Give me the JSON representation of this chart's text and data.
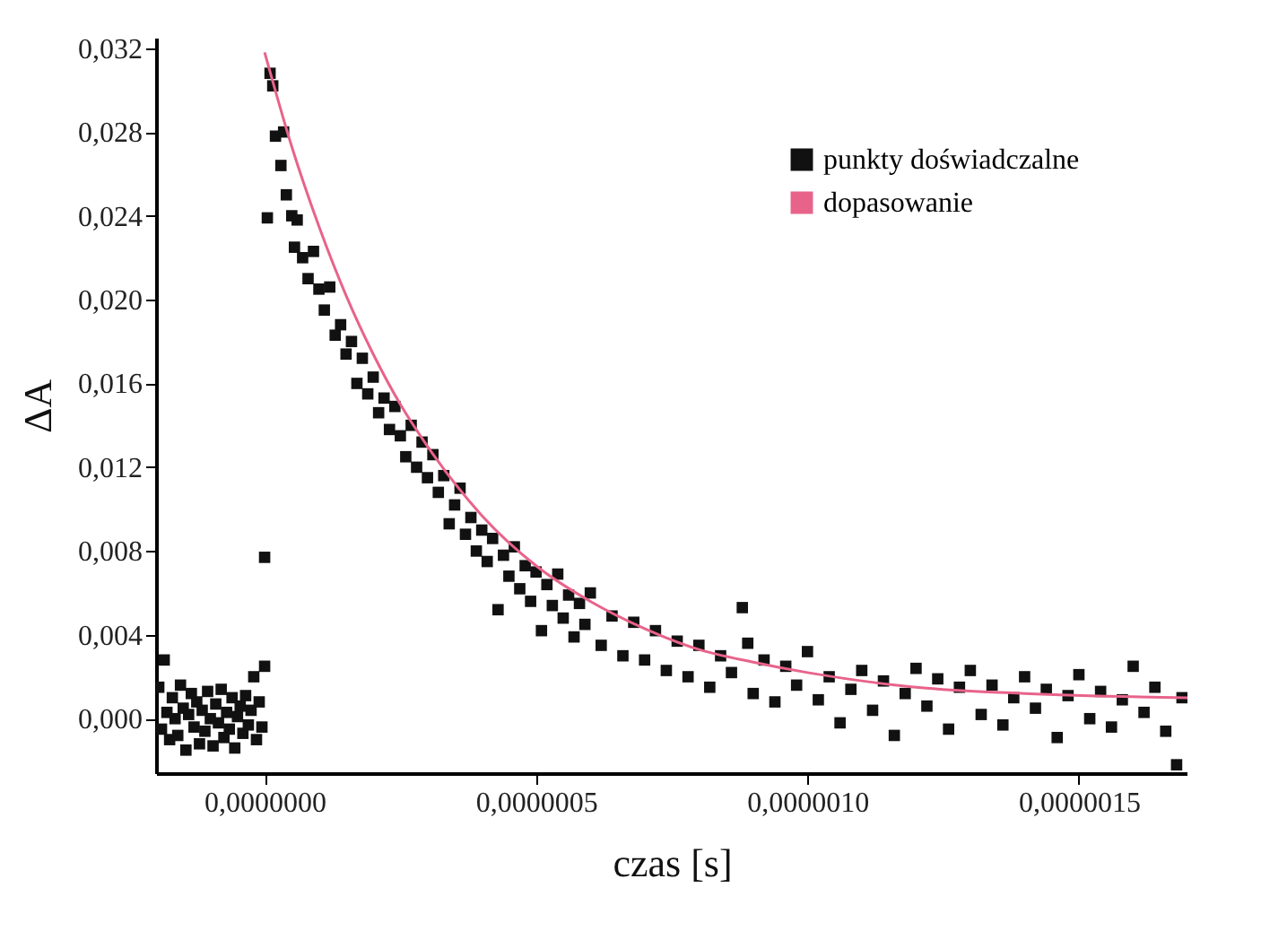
{
  "chart_data": {
    "type": "scatter",
    "xlabel": "czas [s]",
    "ylabel": "ΔA",
    "xlim": [
      -2e-07,
      1.7e-06
    ],
    "ylim": [
      -0.0026,
      0.0325
    ],
    "xticks": [
      {
        "value": 0,
        "label": "0,0000000"
      },
      {
        "value": 5e-07,
        "label": "0,0000005"
      },
      {
        "value": 1e-06,
        "label": "0,0000010"
      },
      {
        "value": 1.5e-06,
        "label": "0,0000015"
      }
    ],
    "yticks": [
      {
        "value": 0,
        "label": "0,000"
      },
      {
        "value": 0.004,
        "label": "0,004"
      },
      {
        "value": 0.008,
        "label": "0,008"
      },
      {
        "value": 0.012,
        "label": "0,012"
      },
      {
        "value": 0.016,
        "label": "0,016"
      },
      {
        "value": 0.02,
        "label": "0,020"
      },
      {
        "value": 0.024,
        "label": "0,024"
      },
      {
        "value": 0.028,
        "label": "0,028"
      },
      {
        "value": 0.032,
        "label": "0,032"
      }
    ],
    "grid": false,
    "legend": "top right",
    "series": [
      {
        "name": "punkty doświadczalne",
        "marker": "square",
        "color": "#111111",
        "x": [
          -1.95e-07,
          -1.9e-07,
          -1.85e-07,
          -1.8e-07,
          -1.75e-07,
          -1.7e-07,
          -1.65e-07,
          -1.6e-07,
          -1.55e-07,
          -1.5e-07,
          -1.45e-07,
          -1.4e-07,
          -1.35e-07,
          -1.3e-07,
          -1.25e-07,
          -1.2e-07,
          -1.15e-07,
          -1.1e-07,
          -1.05e-07,
          -1e-07,
          -9.5e-08,
          -9e-08,
          -8.5e-08,
          -8e-08,
          -7.5e-08,
          -7e-08,
          -6.5e-08,
          -6e-08,
          -5.5e-08,
          -5e-08,
          -4.5e-08,
          -4e-08,
          -3.5e-08,
          -3e-08,
          -2.5e-08,
          -2e-08,
          -1.5e-08,
          -1e-08,
          -5e-09,
          0,
          0,
          5e-09,
          1e-08,
          1.5e-08,
          2e-08,
          3e-08,
          3.5e-08,
          4e-08,
          5e-08,
          5.5e-08,
          6e-08,
          7e-08,
          8e-08,
          9e-08,
          1e-07,
          1.1e-07,
          1.2e-07,
          1.3e-07,
          1.4e-07,
          1.5e-07,
          1.6e-07,
          1.7e-07,
          1.8e-07,
          1.9e-07,
          2e-07,
          2.1e-07,
          2.2e-07,
          2.3e-07,
          2.4e-07,
          2.5e-07,
          2.6e-07,
          2.7e-07,
          2.8e-07,
          2.9e-07,
          3e-07,
          3.1e-07,
          3.2e-07,
          3.3e-07,
          3.4e-07,
          3.5e-07,
          3.6e-07,
          3.7e-07,
          3.8e-07,
          3.9e-07,
          4e-07,
          4.1e-07,
          4.2e-07,
          4.3e-07,
          4.4e-07,
          4.5e-07,
          4.6e-07,
          4.7e-07,
          4.8e-07,
          4.9e-07,
          5e-07,
          5.1e-07,
          5.2e-07,
          5.3e-07,
          5.4e-07,
          5.5e-07,
          5.6e-07,
          5.7e-07,
          5.8e-07,
          5.9e-07,
          6e-07,
          6.2e-07,
          6.4e-07,
          6.6e-07,
          6.8e-07,
          7e-07,
          7.2e-07,
          7.4e-07,
          7.6e-07,
          7.8e-07,
          8e-07,
          8.2e-07,
          8.4e-07,
          8.6e-07,
          8.8e-07,
          8.9e-07,
          9e-07,
          9.2e-07,
          9.4e-07,
          9.6e-07,
          9.8e-07,
          1e-06,
          1.02e-06,
          1.04e-06,
          1.06e-06,
          1.08e-06,
          1.1e-06,
          1.12e-06,
          1.14e-06,
          1.16e-06,
          1.18e-06,
          1.2e-06,
          1.22e-06,
          1.24e-06,
          1.26e-06,
          1.28e-06,
          1.3e-06,
          1.32e-06,
          1.34e-06,
          1.36e-06,
          1.38e-06,
          1.4e-06,
          1.42e-06,
          1.44e-06,
          1.46e-06,
          1.48e-06,
          1.5e-06,
          1.52e-06,
          1.54e-06,
          1.56e-06,
          1.58e-06,
          1.6e-06,
          1.62e-06,
          1.64e-06,
          1.66e-06,
          1.68e-06,
          1.69e-06
        ],
        "values": [
          0.0015,
          -0.0005,
          0.0028,
          0.0003,
          -0.001,
          0.001,
          0.0,
          -0.0008,
          0.0016,
          0.0005,
          -0.0015,
          0.0002,
          0.0012,
          -0.0004,
          0.0008,
          -0.0012,
          0.0004,
          -0.0006,
          0.0013,
          0.0,
          -0.0013,
          0.0007,
          -0.0002,
          0.0014,
          -0.0009,
          0.0003,
          -0.0005,
          0.001,
          -0.0014,
          0.0001,
          0.0006,
          -0.0007,
          0.0011,
          -0.0003,
          0.0004,
          0.002,
          -0.001,
          0.0008,
          -0.0004,
          0.0025,
          0.0077,
          0.0239,
          0.0308,
          0.0302,
          0.0278,
          0.0264,
          0.028,
          0.025,
          0.024,
          0.0225,
          0.0238,
          0.022,
          0.021,
          0.0223,
          0.0205,
          0.0195,
          0.0206,
          0.0183,
          0.0188,
          0.0174,
          0.018,
          0.016,
          0.0172,
          0.0155,
          0.0163,
          0.0146,
          0.0153,
          0.0138,
          0.0149,
          0.0135,
          0.0125,
          0.014,
          0.012,
          0.0132,
          0.0115,
          0.0126,
          0.0108,
          0.0116,
          0.0093,
          0.0102,
          0.011,
          0.0088,
          0.0096,
          0.008,
          0.009,
          0.0075,
          0.0086,
          0.0052,
          0.0078,
          0.0068,
          0.0082,
          0.0062,
          0.0073,
          0.0056,
          0.007,
          0.0042,
          0.0064,
          0.0054,
          0.0069,
          0.0048,
          0.0059,
          0.0039,
          0.0055,
          0.0045,
          0.006,
          0.0035,
          0.0049,
          0.003,
          0.0046,
          0.0028,
          0.0042,
          0.0023,
          0.0037,
          0.002,
          0.0035,
          0.0015,
          0.003,
          0.0022,
          0.0053,
          0.0036,
          0.0012,
          0.0028,
          0.0008,
          0.0025,
          0.0016,
          0.0032,
          0.0009,
          0.002,
          -0.0002,
          0.0014,
          0.0023,
          0.0004,
          0.0018,
          -0.0008,
          0.0012,
          0.0024,
          0.0006,
          0.0019,
          -0.0005,
          0.0015,
          0.0023,
          0.0002,
          0.0016,
          -0.0003,
          0.001,
          0.002,
          0.0005,
          0.0014,
          -0.0009,
          0.0011,
          0.0021,
          0.0,
          0.0013,
          -0.0004,
          0.0009,
          0.0025,
          0.0003,
          0.0015,
          -0.0006,
          -0.0022,
          0.001
        ]
      },
      {
        "name": "dopasowanie",
        "type": "line",
        "color": "#e8638a",
        "x": [
          0,
          5e-08,
          1e-07,
          1.5e-07,
          2e-07,
          2.5e-07,
          3e-07,
          4e-07,
          5e-07,
          6e-07,
          7e-07,
          8e-07,
          9e-07,
          1e-06,
          1.2e-06,
          1.4e-06,
          1.7e-06
        ],
        "values": [
          0.0318,
          0.0273,
          0.0235,
          0.0202,
          0.0174,
          0.015,
          0.013,
          0.0097,
          0.0073,
          0.0056,
          0.0043,
          0.0033,
          0.0027,
          0.0022,
          0.0015,
          0.0012,
          0.001
        ]
      }
    ]
  }
}
